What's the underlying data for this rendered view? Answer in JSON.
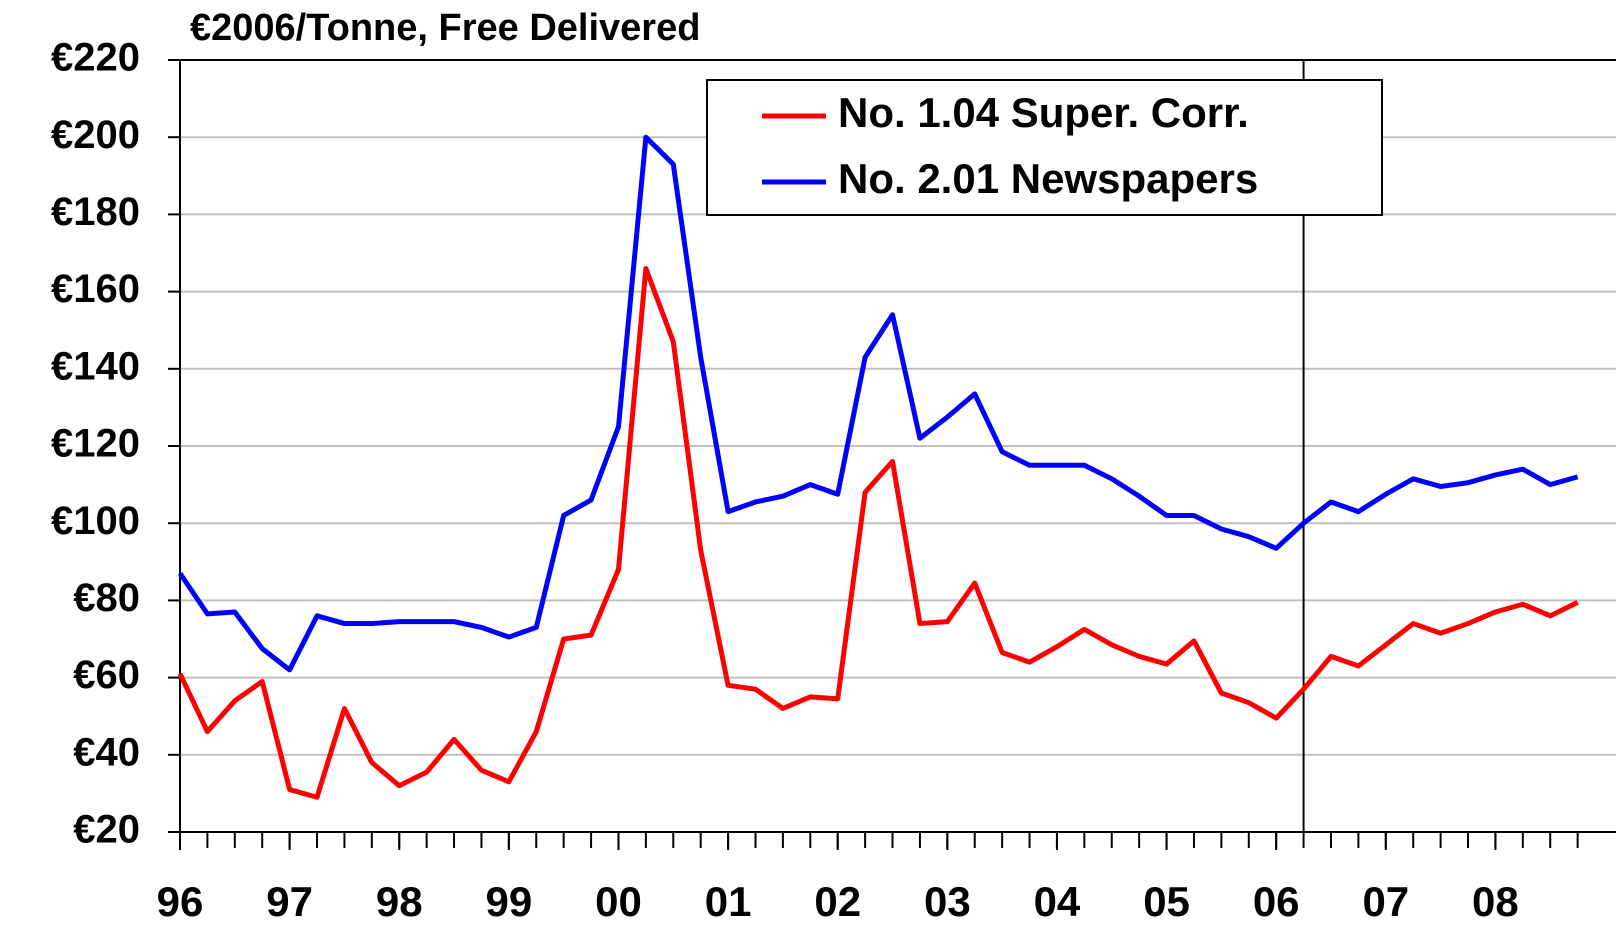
{
  "chart_data": {
    "type": "line",
    "title": "€2006/Tonne, Free Delivered",
    "x": [
      1996,
      1996.25,
      1996.5,
      1996.75,
      1997,
      1997.25,
      1997.5,
      1997.75,
      1998,
      1998.25,
      1998.5,
      1998.75,
      1999,
      1999.25,
      1999.5,
      1999.75,
      2000,
      2000.25,
      2000.5,
      2000.75,
      2001,
      2001.25,
      2001.5,
      2001.75,
      2002,
      2002.25,
      2002.5,
      2002.75,
      2003,
      2003.25,
      2003.5,
      2003.75,
      2004,
      2004.25,
      2004.5,
      2004.75,
      2005,
      2005.25,
      2005.5,
      2005.75,
      2006,
      2006.25,
      2006.5,
      2006.75,
      2007,
      2007.25,
      2007.5,
      2007.75,
      2008,
      2008.25,
      2008.5,
      2008.75
    ],
    "series": [
      {
        "name": "No. 1.04 Super. Corr.",
        "color": "#ff0000",
        "values": [
          61,
          46,
          54,
          59,
          31,
          29,
          52,
          38,
          32,
          35.5,
          44,
          36,
          33,
          46,
          70,
          71,
          88,
          166,
          147,
          93,
          58,
          57,
          52,
          55,
          54.5,
          108,
          116,
          74,
          74.5,
          84.5,
          66.5,
          64,
          68,
          72.5,
          68.5,
          65.5,
          63.5,
          69.5,
          56,
          53.5,
          49.5,
          57,
          65.5,
          63,
          68.5,
          74,
          71.5,
          74,
          77,
          79,
          76,
          79.5
        ]
      },
      {
        "name": "No. 2.01 Newspapers",
        "color": "#0000ff",
        "values": [
          87,
          76.5,
          77,
          67.5,
          62,
          76,
          74,
          74,
          74.5,
          74.5,
          74.5,
          73,
          70.5,
          73,
          102,
          106,
          125,
          200,
          193,
          143,
          103,
          105.5,
          107,
          110,
          107.5,
          143,
          154,
          122,
          127.5,
          133.5,
          118.5,
          115,
          115,
          115,
          111.5,
          107,
          102,
          102,
          98.5,
          96.5,
          93.5,
          100,
          105.5,
          103,
          107.5,
          111.5,
          109.5,
          110.5,
          112.5,
          114,
          110,
          112
        ]
      }
    ],
    "xlim": [
      1996,
      2009.1
    ],
    "xticks": [
      {
        "value": 1996,
        "label": "96"
      },
      {
        "value": 1997,
        "label": "97"
      },
      {
        "value": 1998,
        "label": "98"
      },
      {
        "value": 1999,
        "label": "99"
      },
      {
        "value": 2000,
        "label": "00"
      },
      {
        "value": 2001,
        "label": "01"
      },
      {
        "value": 2002,
        "label": "02"
      },
      {
        "value": 2003,
        "label": "03"
      },
      {
        "value": 2004,
        "label": "04"
      },
      {
        "value": 2005,
        "label": "05"
      },
      {
        "value": 2006,
        "label": "06"
      },
      {
        "value": 2007,
        "label": "07"
      },
      {
        "value": 2008,
        "label": "08"
      }
    ],
    "ylim": [
      20,
      220
    ],
    "yticks": [
      {
        "value": 20,
        "label": "€20"
      },
      {
        "value": 40,
        "label": "€40"
      },
      {
        "value": 60,
        "label": "€60"
      },
      {
        "value": 80,
        "label": "€80"
      },
      {
        "value": 100,
        "label": "€100"
      },
      {
        "value": 120,
        "label": "€120"
      },
      {
        "value": 140,
        "label": "€140"
      },
      {
        "value": 160,
        "label": "€160"
      },
      {
        "value": 180,
        "label": "€180"
      },
      {
        "value": 200,
        "label": "€200"
      },
      {
        "value": 220,
        "label": "€220"
      }
    ],
    "vline": 2006.25,
    "grid": true,
    "legend": "top-right"
  }
}
